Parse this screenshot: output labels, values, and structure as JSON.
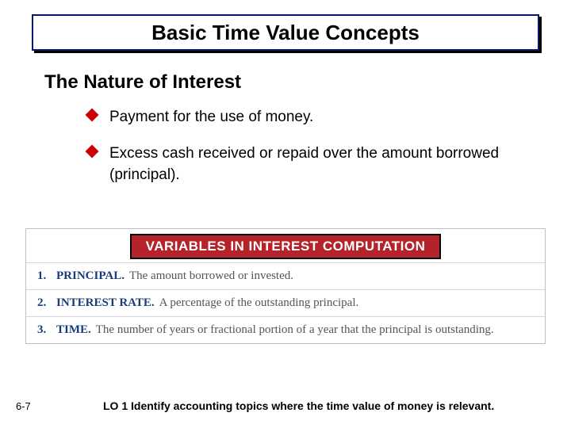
{
  "title_bar": {
    "text": "Basic Time Value Concepts",
    "background_color": "#ffffff",
    "border_color": "#0a1a6a",
    "shadow_color": "#000000",
    "font_size": 26,
    "font_weight": "bold",
    "text_color": "#000000"
  },
  "subtitle": {
    "text": "The Nature of Interest",
    "font_size": 24,
    "font_weight": "bold",
    "color": "#000000"
  },
  "bullets": [
    {
      "text": "Payment for the use of money.",
      "marker_color": "#cc0000"
    },
    {
      "text": "Excess cash received or repaid over the amount borrowed (principal).",
      "marker_color": "#cc0000"
    }
  ],
  "info_box": {
    "header": {
      "text": "VARIABLES IN INTEREST COMPUTATION",
      "background_color": "#b4232a",
      "border_color": "#000000",
      "text_color": "#ffffff",
      "font_size": 17
    },
    "border_color": "#c0c0c0",
    "divider_color": "#d8d8d8",
    "items": [
      {
        "num": "1.",
        "term": "PRINCIPAL.",
        "desc": "The amount borrowed or invested."
      },
      {
        "num": "2.",
        "term": "INTEREST RATE.",
        "desc": "A percentage of the outstanding principal."
      },
      {
        "num": "3.",
        "term": "TIME.",
        "desc": "The number of years or fractional portion of a year that the principal is outstanding."
      }
    ],
    "num_term_color": "#1a3b7a",
    "desc_color": "#555555"
  },
  "footer": {
    "page_num": "6-7",
    "lo_text": "LO 1  Identify accounting topics where the time value of money is relevant."
  }
}
